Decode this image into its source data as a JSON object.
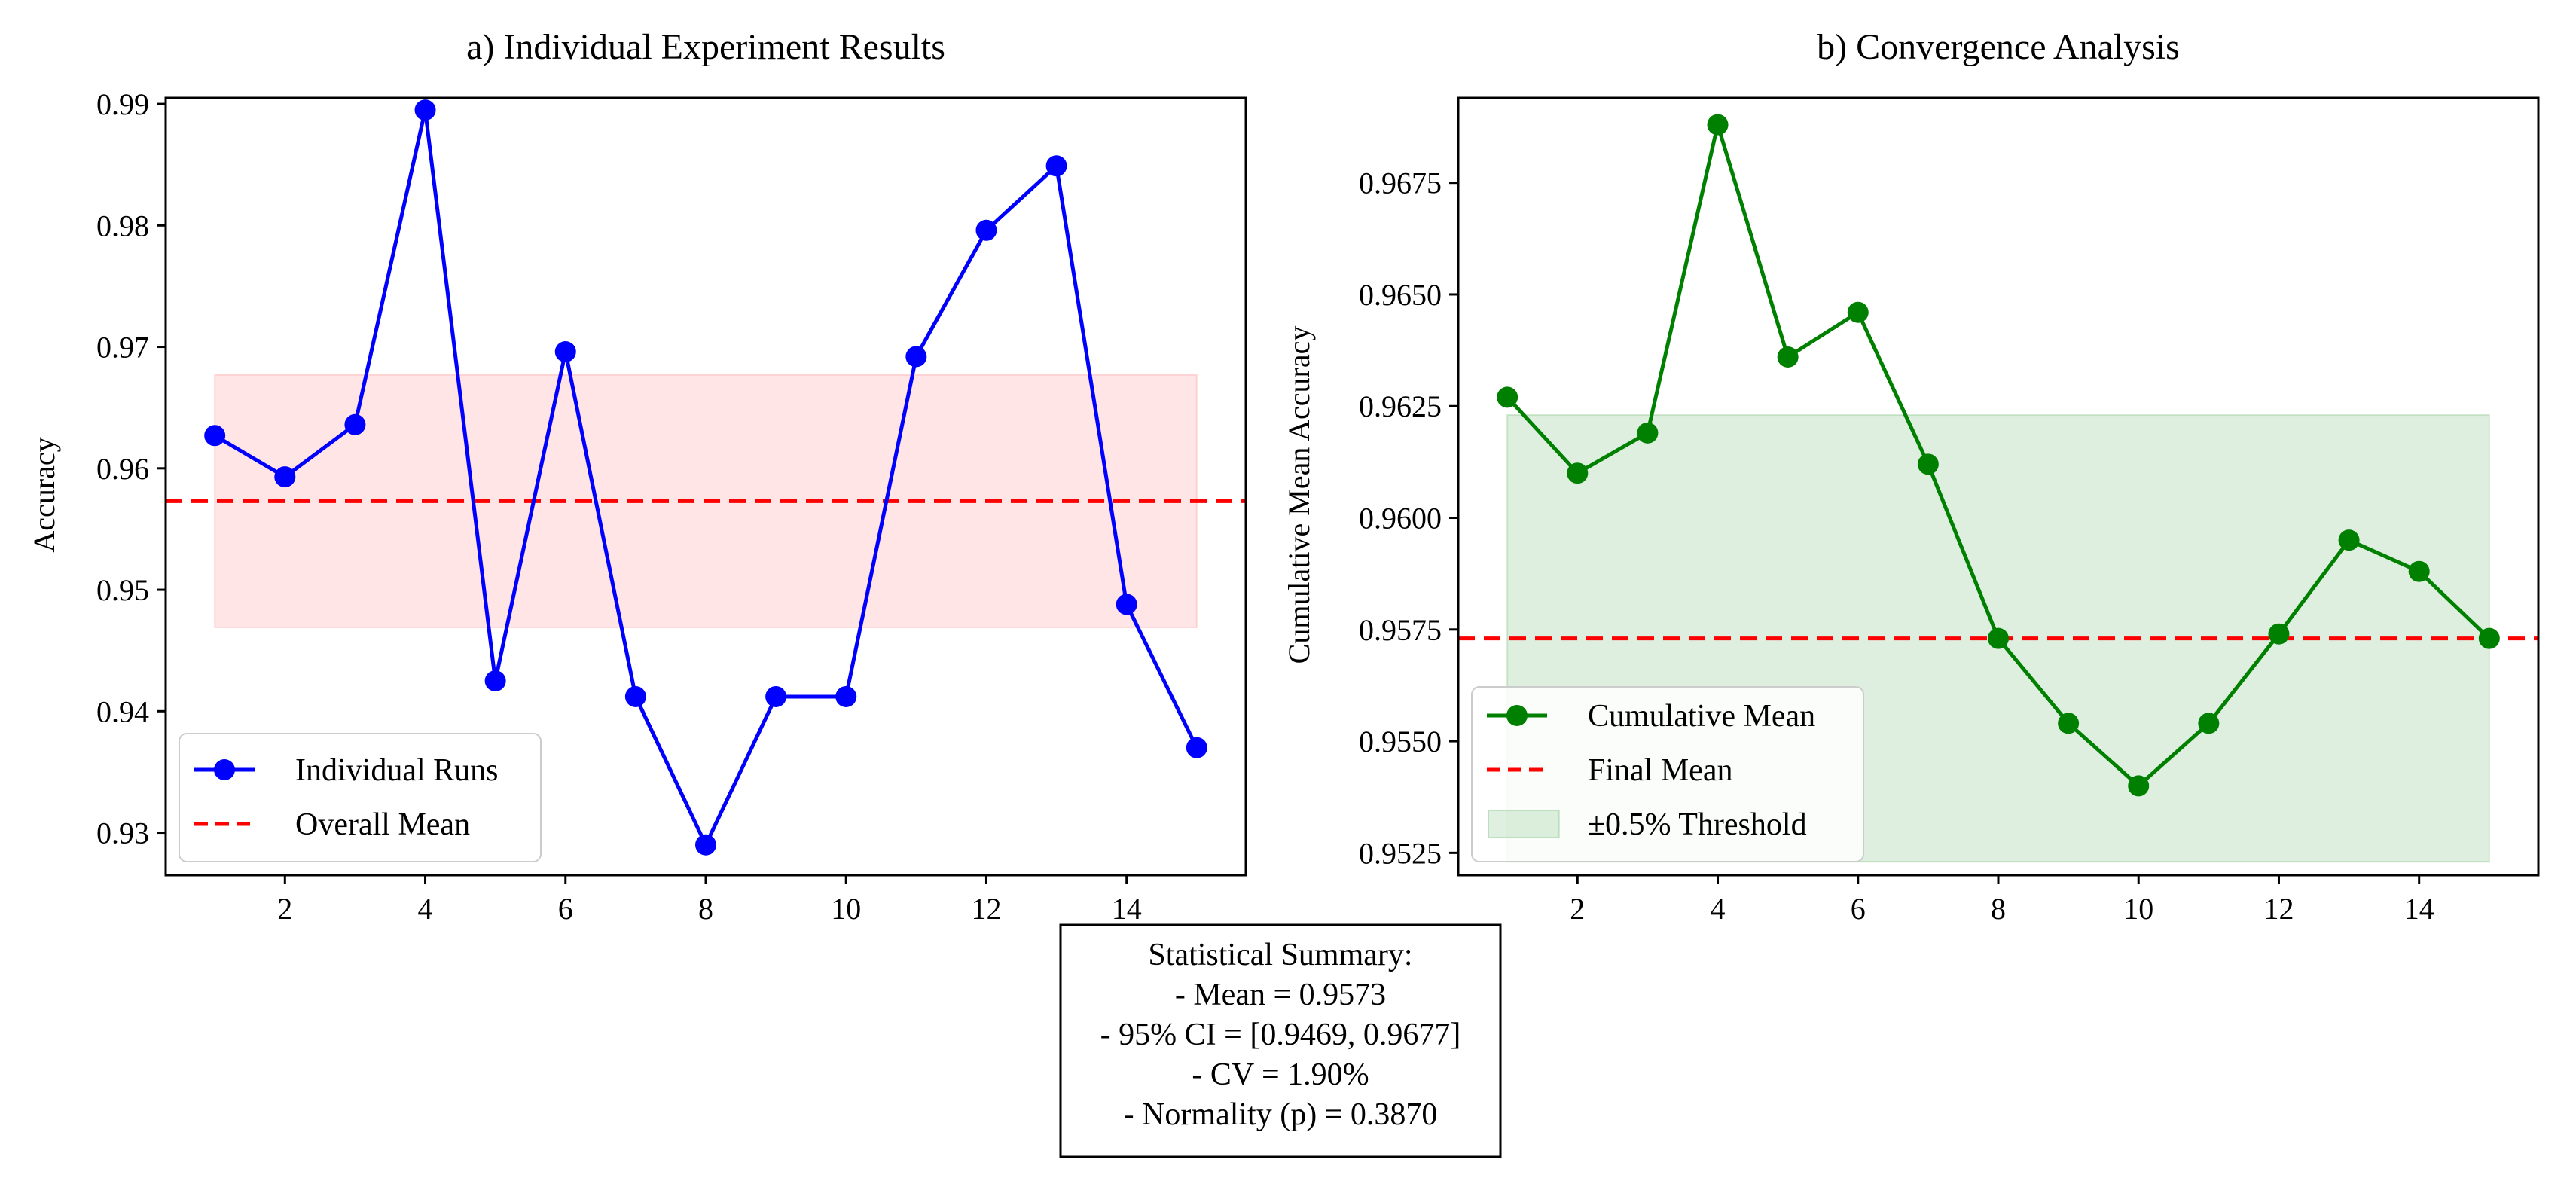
{
  "summary": {
    "lines": [
      "Statistical Summary:",
      "- Mean = 0.9573",
      "- 95% CI = [0.9469, 0.9677]",
      "- CV = 1.90%",
      "- Normality (p) = 0.3870"
    ]
  },
  "chart_data": [
    {
      "type": "line",
      "title": "a) Individual Experiment Results",
      "xlabel": "",
      "ylabel": "Accuracy",
      "xlim": [
        0.3,
        15.7
      ],
      "ylim": [
        0.9265,
        0.9905
      ],
      "xticks": [
        2,
        4,
        6,
        8,
        10,
        12,
        14
      ],
      "yticks": [
        0.93,
        0.94,
        0.95,
        0.96,
        0.97,
        0.98,
        0.99
      ],
      "ytick_labels": [
        "0.93",
        "0.94",
        "0.95",
        "0.96",
        "0.97",
        "0.98",
        "0.99"
      ],
      "grid": false,
      "legend_position": "bottom-left",
      "series": [
        {
          "name": "Individual Runs",
          "color": "#0000ff",
          "marker": "circle",
          "x": [
            1,
            2,
            3,
            4,
            5,
            6,
            7,
            8,
            9,
            10,
            11,
            12,
            13,
            14,
            15
          ],
          "values": [
            0.9627,
            0.9593,
            0.9636,
            0.9895,
            0.9425,
            0.9696,
            0.9412,
            0.929,
            0.9412,
            0.9412,
            0.9692,
            0.9796,
            0.9849,
            0.9488,
            0.937
          ]
        }
      ],
      "hlines": [
        {
          "name": "Overall Mean",
          "y": 0.9573,
          "color": "#ff0000",
          "style": "dashed"
        }
      ],
      "bands": [
        {
          "name": "95% CI",
          "x": [
            1,
            15
          ],
          "y": [
            0.9469,
            0.9677
          ],
          "color": "#ff9999",
          "in_legend": false
        }
      ],
      "legend": [
        "Individual Runs",
        "Overall Mean"
      ]
    },
    {
      "type": "line",
      "title": "b) Convergence Analysis",
      "xlabel": "",
      "ylabel": "Cumulative Mean Accuracy",
      "xlim": [
        0.3,
        15.7
      ],
      "ylim": [
        0.952,
        0.9694
      ],
      "xticks": [
        2,
        4,
        6,
        8,
        10,
        12,
        14
      ],
      "yticks": [
        0.9525,
        0.955,
        0.9575,
        0.96,
        0.9625,
        0.965,
        0.9675
      ],
      "ytick_labels": [
        "0.9525",
        "0.9550",
        "0.9575",
        "0.9600",
        "0.9625",
        "0.9650",
        "0.9675"
      ],
      "grid": false,
      "legend_position": "bottom-left",
      "series": [
        {
          "name": "Cumulative Mean",
          "color": "#008000",
          "marker": "circle",
          "x": [
            1,
            2,
            3,
            4,
            5,
            6,
            7,
            8,
            9,
            10,
            11,
            12,
            13,
            14,
            15
          ],
          "values": [
            0.9627,
            0.961,
            0.9619,
            0.9688,
            0.9636,
            0.9646,
            0.9612,
            0.9573,
            0.9554,
            0.954,
            0.9554,
            0.9574,
            0.9595,
            0.9588,
            0.9573
          ]
        }
      ],
      "hlines": [
        {
          "name": "Final Mean",
          "y": 0.9573,
          "color": "#ff0000",
          "style": "dashed"
        }
      ],
      "bands": [
        {
          "name": "±0.5% Threshold",
          "x": [
            1,
            15
          ],
          "y": [
            0.9523,
            0.9623
          ],
          "color": "#7fbf7f",
          "in_legend": true
        }
      ],
      "legend": [
        "Cumulative Mean",
        "Final Mean",
        "±0.5% Threshold"
      ]
    }
  ]
}
